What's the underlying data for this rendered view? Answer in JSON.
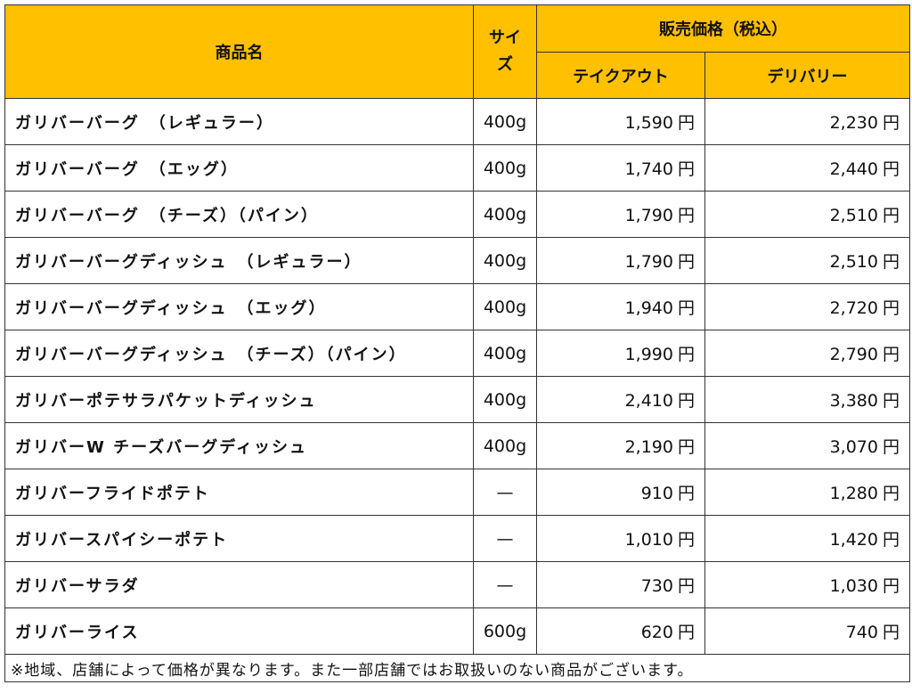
{
  "colors": {
    "header_bg": "#FFC000",
    "border": "#333333",
    "body_bg": "#FFFFFF",
    "text": "#111111"
  },
  "header": {
    "product_name": "商品名",
    "size_line1": "サイ",
    "size_line2": "ズ",
    "price_group": "販売価格（税込）",
    "takeout": "テイクアウト",
    "delivery": "デリバリー"
  },
  "currency": "円",
  "rows": [
    {
      "name": "ガリバーバーグ　（レギュラー）",
      "size": "400g",
      "takeout": "1,590",
      "delivery": "2,230"
    },
    {
      "name": "ガリバーバーグ　（エッグ）",
      "size": "400g",
      "takeout": "1,740",
      "delivery": "2,440"
    },
    {
      "name": "ガリバーバーグ　（チーズ）（パイン）",
      "size": "400g",
      "takeout": "1,790",
      "delivery": "2,510"
    },
    {
      "name": "ガリバーバーグディッシュ　（レギュラー）",
      "size": "400g",
      "takeout": "1,790",
      "delivery": "2,510"
    },
    {
      "name": "ガリバーバーグディッシュ　（エッグ）",
      "size": "400g",
      "takeout": "1,940",
      "delivery": "2,720"
    },
    {
      "name": "ガリバーバーグディッシュ　（チーズ）（パイン）",
      "size": "400g",
      "takeout": "1,990",
      "delivery": "2,790"
    },
    {
      "name": "ガリバーポテサラパケットディッシュ",
      "size": "400g",
      "takeout": "2,410",
      "delivery": "3,380"
    },
    {
      "name": "ガリバーW チーズバーグディッシュ",
      "size": "400g",
      "takeout": "2,190",
      "delivery": "3,070"
    },
    {
      "name": "ガリバーフライドポテト",
      "size": "—",
      "takeout": "910",
      "delivery": "1,280"
    },
    {
      "name": "ガリバースパイシーポテト",
      "size": "—",
      "takeout": "1,010",
      "delivery": "1,420"
    },
    {
      "name": "ガリバーサラダ",
      "size": "—",
      "takeout": "730",
      "delivery": "1,030"
    },
    {
      "name": "ガリバーライス",
      "size": "600g",
      "takeout": "620",
      "delivery": "740"
    }
  ],
  "note": "※地域、店舗によって価格が異なります。また一部店舗ではお取扱いのない商品がございます。"
}
